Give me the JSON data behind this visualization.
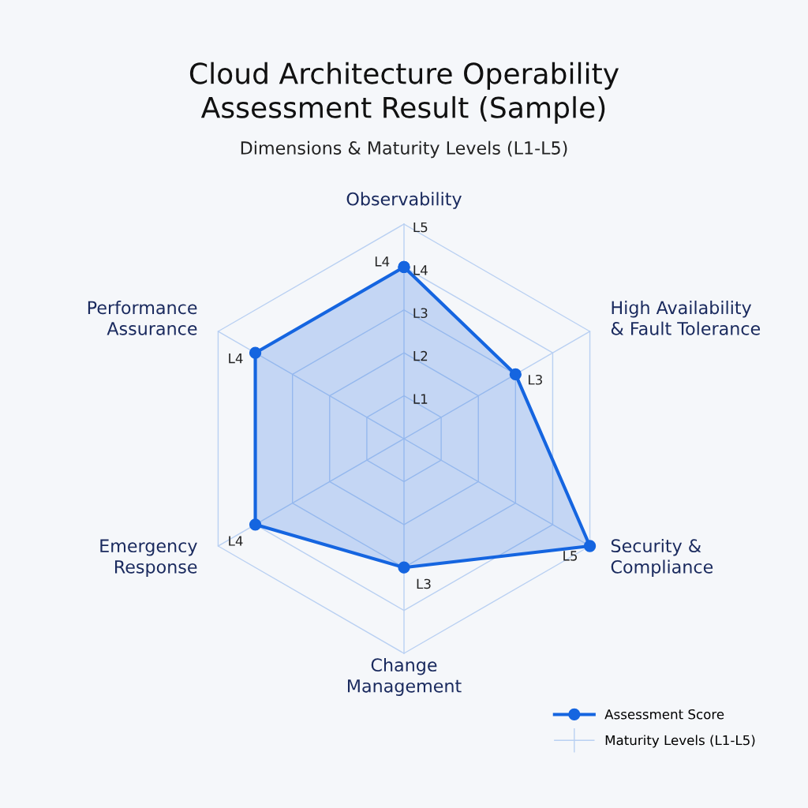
{
  "chart_data": {
    "type": "radar",
    "title": "Cloud Architecture Operability\nAssessment Result (Sample)",
    "subtitle": "Dimensions & Maturity Levels (L1-L5)",
    "categories": [
      "Observability",
      "High Availability\n& Fault Tolerance",
      "Security &\nCompliance",
      "Change\nManagement",
      "Emergency\nResponse",
      "Performance\nAssurance"
    ],
    "series": [
      {
        "name": "Assessment Score",
        "color": "#1565e0",
        "values": [
          4,
          3,
          5,
          3,
          4,
          4
        ],
        "value_labels": [
          "L4",
          "L3",
          "L5",
          "L3",
          "L4",
          "L4"
        ]
      }
    ],
    "ylim": [
      0,
      5
    ],
    "yticks": [
      {
        "value": 1,
        "label": "L1"
      },
      {
        "value": 2,
        "label": "L2"
      },
      {
        "value": 3,
        "label": "L3"
      },
      {
        "value": 4,
        "label": "L4"
      },
      {
        "value": 5,
        "label": "L5"
      }
    ],
    "grid": true,
    "marker": "circle",
    "line_style": "solid",
    "legend": "bottom right",
    "annotations": [
      "Maturity Levels (L1-L5)"
    ]
  }
}
